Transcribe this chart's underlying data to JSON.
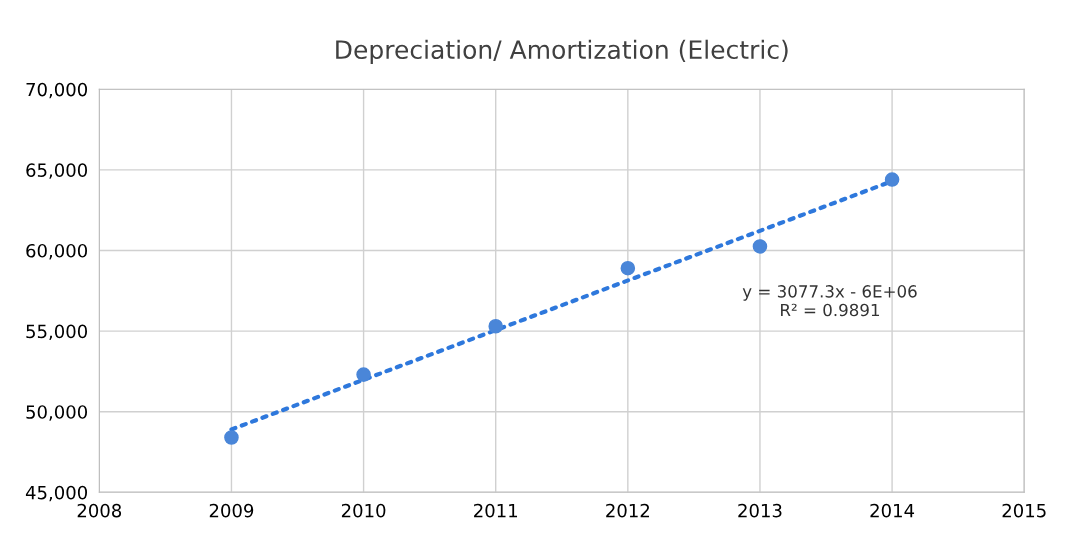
{
  "chart_data": {
    "type": "scatter",
    "title": "Depreciation/ Amortization (Electric)",
    "x": [
      2009,
      2010,
      2011,
      2012,
      2013,
      2014
    ],
    "series": [
      {
        "color": "#4a86d8",
        "values": [
          48400,
          52300,
          55300,
          58900,
          60250,
          64400
        ],
        "marker": "circle"
      },
      {
        "type": "line",
        "color": "#2e78dc",
        "x": [
          2009,
          2014
        ],
        "values": [
          48900,
          64300
        ],
        "line_style": "dotted",
        "marker": "none"
      }
    ],
    "xlim": [
      2008,
      2015
    ],
    "xticks": [
      2008,
      2009,
      2010,
      2011,
      2012,
      2013,
      2014,
      2015
    ],
    "ylim": [
      45000,
      70000
    ],
    "yticks": [
      {
        "value": 45000,
        "label": "45,000"
      },
      {
        "value": 50000,
        "label": "50,000"
      },
      {
        "value": 55000,
        "label": "55,000"
      },
      {
        "value": 60000,
        "label": "60,000"
      },
      {
        "value": 65000,
        "label": "65,000"
      },
      {
        "value": 70000,
        "label": "70,000"
      }
    ],
    "grid": true,
    "annotations": [
      "y = 3077.3x - 6E+06\nR² = 0.9891"
    ]
  }
}
